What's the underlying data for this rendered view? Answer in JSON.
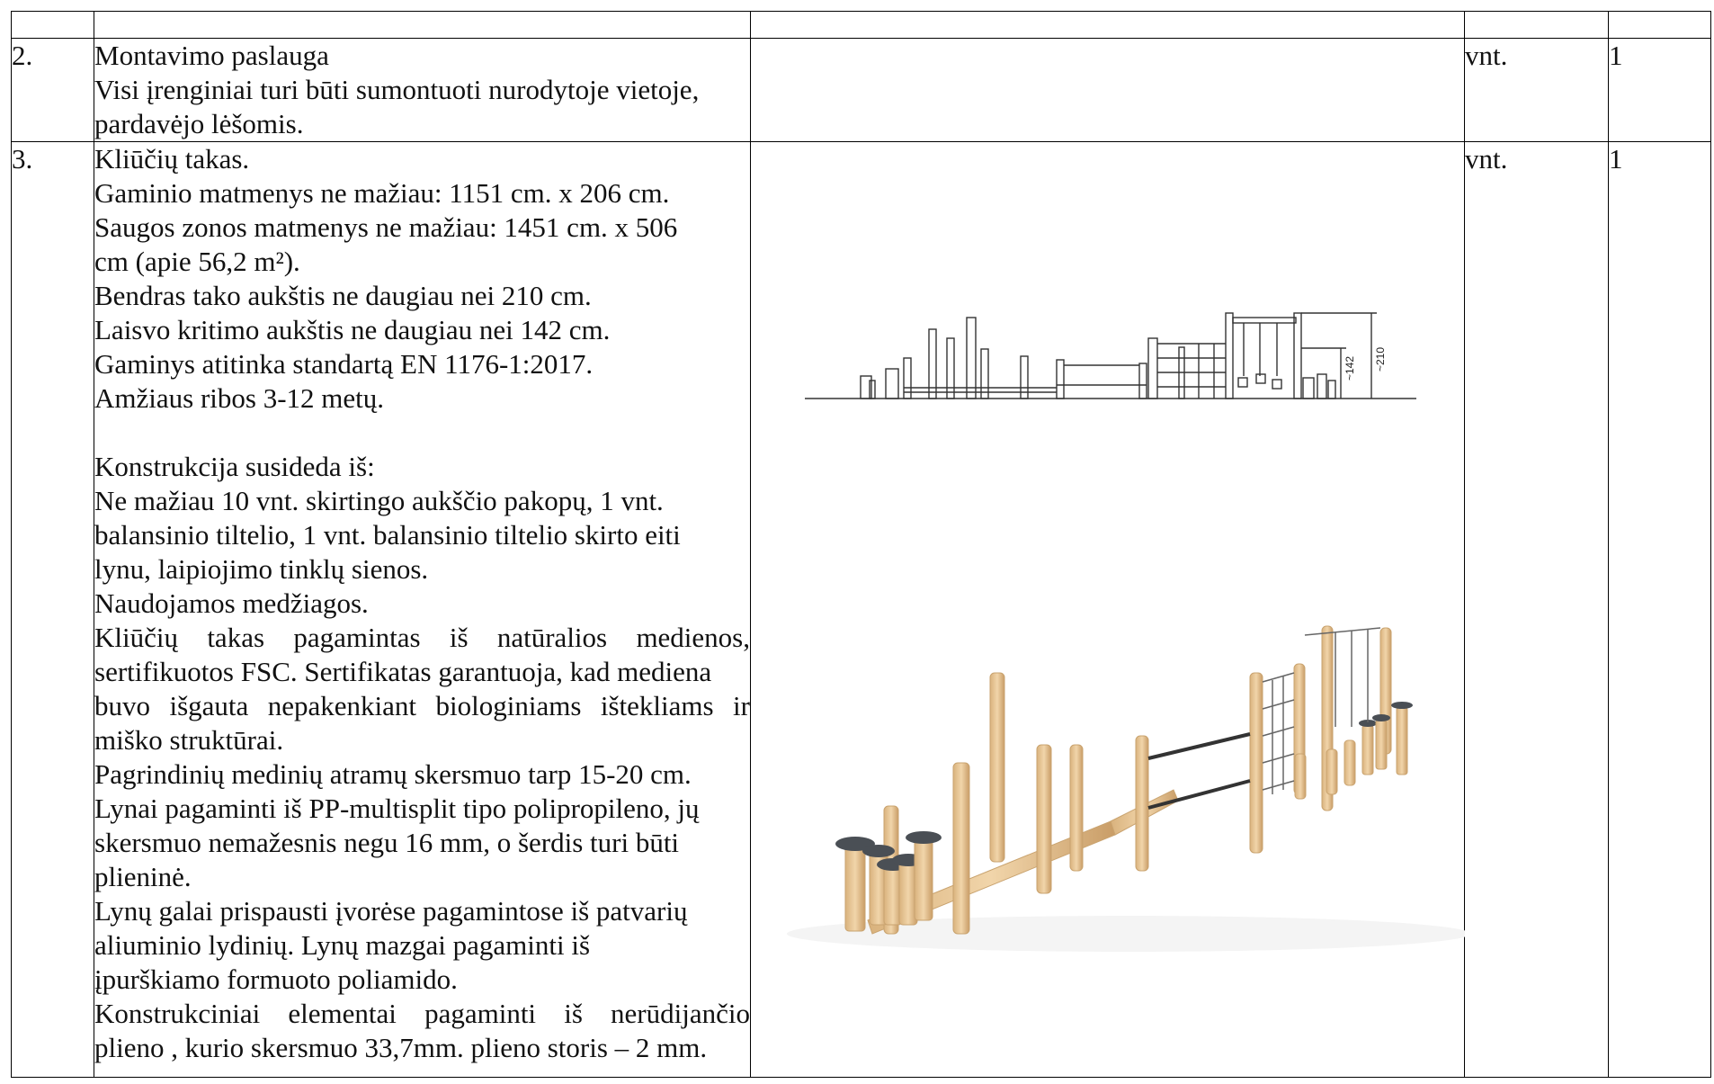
{
  "rows": [
    {
      "num": "2.",
      "title": "Montavimo paslauga",
      "lines": [
        "Visi įrenginiai turi būti sumontuoti nurodytoje vietoje,",
        "pardavėjo lėšomis."
      ],
      "unit": "vnt.",
      "qty": "1"
    },
    {
      "num": "3.",
      "title": "Kliūčių takas.",
      "spec_lines": [
        "Gaminio matmenys ne mažiau: 1151 cm. x 206 cm.",
        "Saugos zonos matmenys ne mažiau: 1451 cm. x 506",
        "cm (apie 56,2 m²).",
        "Bendras tako aukštis ne daugiau nei 210 cm.",
        "Laisvo kritimo aukštis ne daugiau nei 142 cm.",
        "Gaminys atitinka standartą EN 1176-1:2017.",
        "Amžiaus ribos 3-12 metų."
      ],
      "construction_title": "Konstrukcija susideda iš:",
      "construction_lines": [
        "Ne mažiau 10 vnt. skirtingo aukščio pakopų, 1 vnt.",
        "balansinio tiltelio, 1 vnt. balansinio tiltelio skirto eiti",
        "lynu, laipiojimo tinklų sienos.",
        "Naudojamos medžiagos."
      ],
      "materials_lines": [
        "Kliūčių takas pagamintas iš natūralios medienos,",
        "sertifikuotos FSC. Sertifikatas garantuoja, kad mediena",
        "buvo išgauta nepakenkiant biologiniams ištekliams ir",
        "miško struktūrai.",
        "Pagrindinių medinių atramų skersmuo tarp 15-20 cm.",
        "Lynai pagaminti iš PP-multisplit tipo polipropileno, jų",
        "skersmuo nemažesnis negu 16 mm, o šerdis turi būti",
        "plieninė.",
        "Lynų galai prispausti įvorėse pagamintose iš patvarių",
        "aliuminio lydinių. Lynų mazgai pagaminti iš",
        "įpurškiamo formuoto poliamido.",
        "Konstrukciniai elementai pagaminti iš nerūdijančio",
        "plieno , kurio skersmuo 33,7mm. plieno storis – 2 mm."
      ],
      "unit": "vnt.",
      "qty": "1",
      "drawing_dimensions": {
        "height_total": "~210",
        "height_fall": "~142"
      }
    }
  ],
  "colors": {
    "wood": "#e9c89a",
    "wood_dark": "#c9a36f",
    "rope": "#333333",
    "cap": "#4a4f55"
  }
}
